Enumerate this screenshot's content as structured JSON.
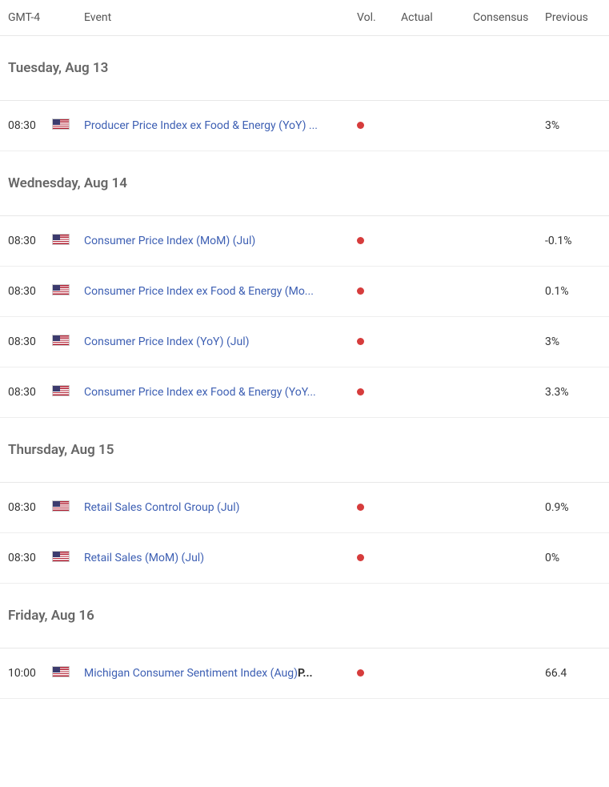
{
  "header": {
    "time": "GMT-4",
    "event": "Event",
    "vol": "Vol.",
    "actual": "Actual",
    "consensus": "Consensus",
    "previous": "Previous"
  },
  "colors": {
    "vol_dot": "#d63c3c",
    "event_link": "#3d5fb3",
    "day_header": "#666666",
    "border": "#e8e8e8",
    "text": "#333333"
  },
  "days": [
    {
      "label": "Tuesday, Aug 13",
      "events": [
        {
          "time": "08:30",
          "country": "us",
          "title": "Producer Price Index ex Food & Energy (YoY) ...",
          "suffix": "",
          "vol": "high",
          "actual": "",
          "consensus": "",
          "previous": "3%"
        }
      ]
    },
    {
      "label": "Wednesday, Aug 14",
      "events": [
        {
          "time": "08:30",
          "country": "us",
          "title": "Consumer Price Index (MoM) (Jul)",
          "suffix": "",
          "vol": "high",
          "actual": "",
          "consensus": "",
          "previous": "-0.1%"
        },
        {
          "time": "08:30",
          "country": "us",
          "title": "Consumer Price Index ex Food & Energy (Mo...",
          "suffix": "",
          "vol": "high",
          "actual": "",
          "consensus": "",
          "previous": "0.1%"
        },
        {
          "time": "08:30",
          "country": "us",
          "title": "Consumer Price Index (YoY) (Jul)",
          "suffix": "",
          "vol": "high",
          "actual": "",
          "consensus": "",
          "previous": "3%"
        },
        {
          "time": "08:30",
          "country": "us",
          "title": "Consumer Price Index ex Food & Energy (YoY...",
          "suffix": "",
          "vol": "high",
          "actual": "",
          "consensus": "",
          "previous": "3.3%"
        }
      ]
    },
    {
      "label": "Thursday, Aug 15",
      "events": [
        {
          "time": "08:30",
          "country": "us",
          "title": "Retail Sales Control Group (Jul)",
          "suffix": "",
          "vol": "high",
          "actual": "",
          "consensus": "",
          "previous": "0.9%"
        },
        {
          "time": "08:30",
          "country": "us",
          "title": "Retail Sales (MoM) (Jul)",
          "suffix": "",
          "vol": "high",
          "actual": "",
          "consensus": "",
          "previous": "0%"
        }
      ]
    },
    {
      "label": "Friday, Aug 16",
      "events": [
        {
          "time": "10:00",
          "country": "us",
          "title": "Michigan Consumer Sentiment Index (Aug)",
          "suffix": "P...",
          "vol": "high",
          "actual": "",
          "consensus": "",
          "previous": "66.4"
        }
      ]
    }
  ]
}
